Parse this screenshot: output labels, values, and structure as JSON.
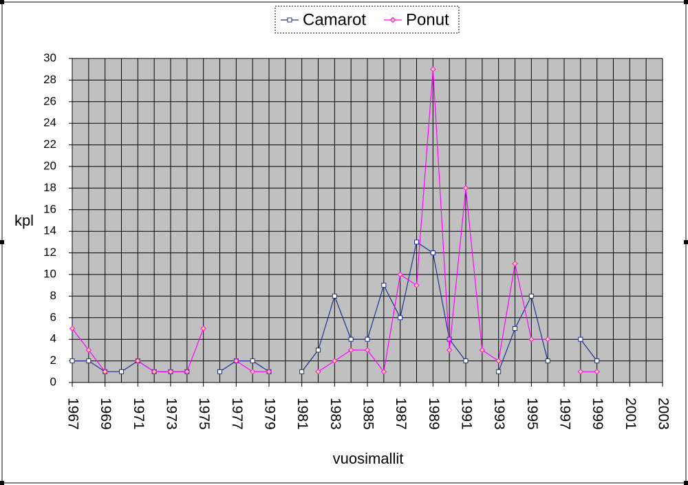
{
  "chart_data": {
    "type": "line",
    "y_label": "kpl",
    "x_label": "vuosimallit",
    "x": [
      1967,
      1968,
      1969,
      1970,
      1971,
      1972,
      1973,
      1974,
      1975,
      1976,
      1977,
      1978,
      1979,
      1980,
      1981,
      1982,
      1983,
      1984,
      1985,
      1986,
      1987,
      1988,
      1989,
      1990,
      1991,
      1992,
      1993,
      1994,
      1995,
      1996,
      1997,
      1998,
      1999,
      2000,
      2001,
      2002,
      2003
    ],
    "series": [
      {
        "name": "Camarot",
        "color": "#1f2f8f",
        "values": [
          2,
          2,
          1,
          1,
          2,
          1,
          1,
          1,
          null,
          1,
          2,
          2,
          1,
          null,
          1,
          3,
          8,
          4,
          4,
          9,
          6,
          13,
          12,
          4,
          2,
          null,
          1,
          5,
          8,
          2,
          null,
          4,
          2,
          null,
          null,
          null,
          null
        ]
      },
      {
        "name": "Ponut",
        "color": "#ff00ff",
        "values": [
          5,
          3,
          1,
          null,
          2,
          1,
          1,
          1,
          5,
          null,
          2,
          1,
          1,
          null,
          null,
          1,
          2,
          3,
          3,
          1,
          10,
          9,
          29,
          3,
          18,
          3,
          2,
          11,
          4,
          4,
          null,
          1,
          1,
          null,
          null,
          null,
          null
        ]
      }
    ],
    "xlim": [
      1967,
      2003
    ],
    "xticks": [
      1967,
      1969,
      1971,
      1973,
      1975,
      1977,
      1979,
      1981,
      1983,
      1985,
      1987,
      1989,
      1991,
      1993,
      1995,
      1997,
      1999,
      2001,
      2003
    ],
    "ylim": [
      0,
      30
    ],
    "yticks": [
      0,
      2,
      4,
      6,
      8,
      10,
      12,
      14,
      16,
      18,
      20,
      22,
      24,
      26,
      28,
      30
    ],
    "grid": true,
    "legend": "top"
  }
}
